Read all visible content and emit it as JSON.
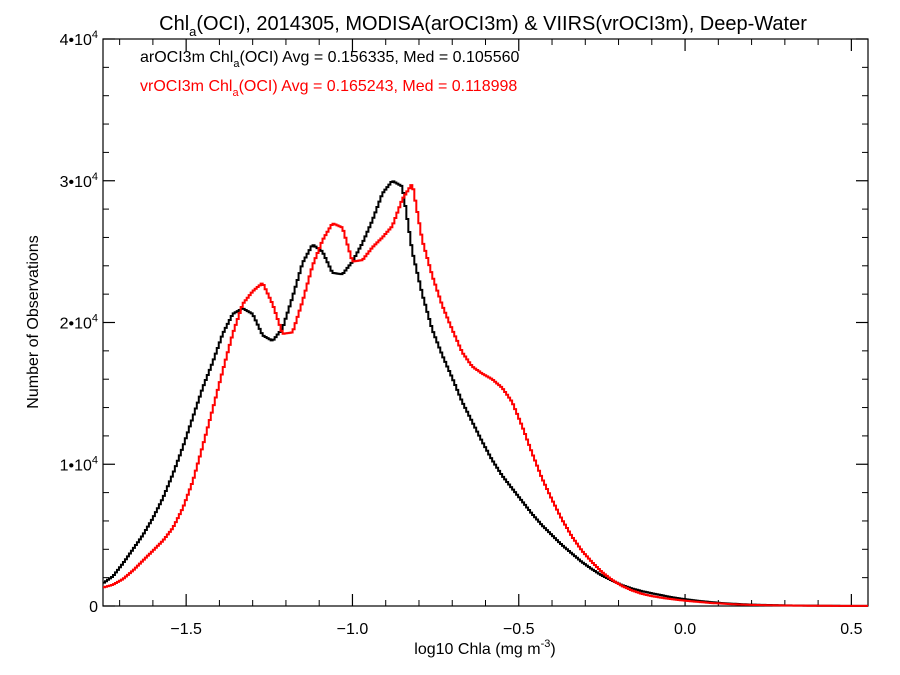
{
  "chart_data": {
    "type": "line",
    "step": true,
    "title": {
      "pre": "Chl",
      "sub": "a",
      "post": "(OCI), 2014305, MODISA(arOCI3m) & VIIRS(vrOCI3m), Deep-Water"
    },
    "xlabel": {
      "pre": "log10 Chla (mg m",
      "sup": "-3",
      "post": ")"
    },
    "ylabel": "Number of Observations",
    "xlim": [
      -1.75,
      0.55
    ],
    "ylim": [
      0,
      40000
    ],
    "x_ticks": [
      {
        "value": -1.5,
        "label": "-1.5"
      },
      {
        "value": -1.0,
        "label": "-1.0"
      },
      {
        "value": -0.5,
        "label": "-0.5"
      },
      {
        "value": 0.0,
        "label": "0.0"
      },
      {
        "value": 0.5,
        "label": "0.5"
      }
    ],
    "y_ticks": [
      {
        "value": 0,
        "base": "0",
        "exp": ""
      },
      {
        "value": 10000,
        "base": "1•10",
        "exp": "4"
      },
      {
        "value": 20000,
        "base": "2•10",
        "exp": "4"
      },
      {
        "value": 30000,
        "base": "3•10",
        "exp": "4"
      },
      {
        "value": 40000,
        "base": "4•10",
        "exp": "4"
      }
    ],
    "grid": false,
    "legend_position": "top-left",
    "series": [
      {
        "name": "arOCI3m",
        "color": "#000000",
        "legend": {
          "pre": "arOCI3m Chl",
          "sub": "a",
          "post": "(OCI) Avg = 0.156335, Med = 0.105560"
        },
        "x": [
          -1.75,
          -1.72,
          -1.69,
          -1.66,
          -1.63,
          -1.6,
          -1.57,
          -1.54,
          -1.51,
          -1.48,
          -1.45,
          -1.42,
          -1.39,
          -1.36,
          -1.33,
          -1.3,
          -1.27,
          -1.24,
          -1.21,
          -1.18,
          -1.15,
          -1.12,
          -1.09,
          -1.06,
          -1.03,
          -1.0,
          -0.97,
          -0.94,
          -0.91,
          -0.88,
          -0.85,
          -0.82,
          -0.79,
          -0.76,
          -0.73,
          -0.7,
          -0.67,
          -0.64,
          -0.61,
          -0.58,
          -0.55,
          -0.52,
          -0.49,
          -0.46,
          -0.43,
          -0.4,
          -0.37,
          -0.34,
          -0.31,
          -0.28,
          -0.25,
          -0.22,
          -0.19,
          -0.16,
          -0.13,
          -0.1,
          -0.07,
          -0.04,
          -0.01,
          0.02,
          0.05,
          0.08,
          0.11,
          0.14,
          0.17,
          0.2,
          0.23,
          0.26,
          0.29,
          0.32,
          0.35,
          0.38,
          0.41,
          0.44,
          0.47,
          0.5,
          0.53
        ],
        "y": [
          1600,
          2100,
          3000,
          4000,
          5000,
          6200,
          7600,
          9300,
          11200,
          13300,
          15400,
          17200,
          19200,
          20600,
          21000,
          20600,
          19100,
          18700,
          19600,
          21800,
          24200,
          25500,
          25000,
          23500,
          23400,
          24300,
          25600,
          27200,
          29100,
          30000,
          29600,
          25000,
          22000,
          19500,
          17700,
          16100,
          14400,
          13000,
          11600,
          10300,
          9200,
          8300,
          7400,
          6500,
          5700,
          5000,
          4300,
          3700,
          3100,
          2600,
          2150,
          1800,
          1480,
          1240,
          1050,
          900,
          760,
          620,
          510,
          420,
          340,
          270,
          210,
          165,
          130,
          100,
          80,
          65,
          50,
          40,
          32,
          25,
          20,
          16,
          12,
          10,
          8
        ]
      },
      {
        "name": "vrOCI3m",
        "color": "#ff0000",
        "legend": {
          "pre": "vrOCI3m Chl",
          "sub": "a",
          "post": "(OCI) Avg = 0.165243, Med = 0.118998"
        },
        "x": [
          -1.75,
          -1.72,
          -1.69,
          -1.66,
          -1.63,
          -1.6,
          -1.57,
          -1.54,
          -1.51,
          -1.48,
          -1.45,
          -1.42,
          -1.39,
          -1.36,
          -1.33,
          -1.3,
          -1.27,
          -1.24,
          -1.21,
          -1.18,
          -1.15,
          -1.12,
          -1.09,
          -1.06,
          -1.03,
          -1.0,
          -0.97,
          -0.94,
          -0.91,
          -0.88,
          -0.85,
          -0.82,
          -0.79,
          -0.76,
          -0.73,
          -0.7,
          -0.67,
          -0.64,
          -0.61,
          -0.58,
          -0.55,
          -0.52,
          -0.49,
          -0.46,
          -0.43,
          -0.4,
          -0.37,
          -0.34,
          -0.31,
          -0.28,
          -0.25,
          -0.22,
          -0.19,
          -0.16,
          -0.13,
          -0.1,
          -0.07,
          -0.04,
          -0.01,
          0.02,
          0.05,
          0.08,
          0.11,
          0.14,
          0.17,
          0.2,
          0.23,
          0.26,
          0.29,
          0.32,
          0.35,
          0.38,
          0.41,
          0.44,
          0.47,
          0.5,
          0.53
        ],
        "y": [
          1300,
          1500,
          1900,
          2500,
          3200,
          3900,
          4600,
          5500,
          6900,
          8800,
          11300,
          13900,
          16600,
          19200,
          21300,
          22200,
          22800,
          21300,
          19200,
          19300,
          21500,
          24000,
          25800,
          27000,
          26700,
          24300,
          24400,
          25300,
          26000,
          26800,
          28700,
          29800,
          25800,
          23300,
          21200,
          19500,
          17900,
          16900,
          16400,
          16000,
          15400,
          14400,
          12700,
          10800,
          9000,
          7500,
          6100,
          4900,
          3900,
          3100,
          2400,
          1850,
          1420,
          1100,
          860,
          700,
          580,
          480,
          400,
          330,
          270,
          210,
          170,
          130,
          100,
          80,
          62,
          50,
          40,
          32,
          25,
          20,
          16,
          13,
          10,
          8,
          6
        ]
      }
    ]
  }
}
